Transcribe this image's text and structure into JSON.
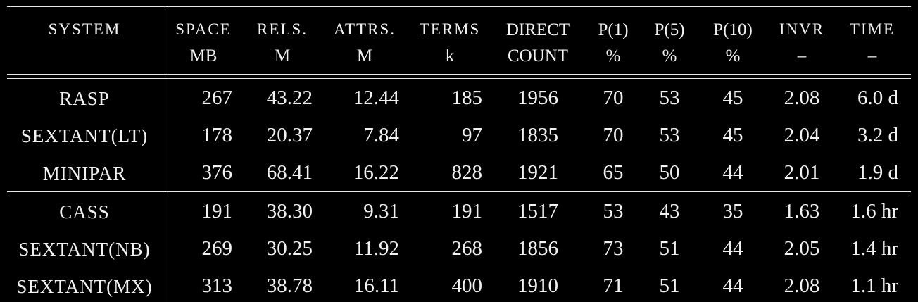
{
  "headers": [
    {
      "top": "SYSTEM",
      "bottom": ""
    },
    {
      "top": "SPACE",
      "bottom": "MB"
    },
    {
      "top": "RELS.",
      "bottom": "M"
    },
    {
      "top": "ATTRS.",
      "bottom": "M"
    },
    {
      "top": "TERMS",
      "bottom": "k"
    },
    {
      "top": "DIRECT",
      "bottom": "COUNT"
    },
    {
      "top": "P(1)",
      "bottom": "%"
    },
    {
      "top": "P(5)",
      "bottom": "%"
    },
    {
      "top": "P(10)",
      "bottom": "%"
    },
    {
      "top": "INVR",
      "bottom": "–"
    },
    {
      "top": "TIME",
      "bottom": "–"
    }
  ],
  "rows": [
    [
      "RASP",
      "267",
      "43.22",
      "12.44",
      "185",
      "1956",
      "70",
      "53",
      "45",
      "2.08",
      "6.0 d"
    ],
    [
      "SEXTANT(LT)",
      "178",
      "20.37",
      "7.84",
      "97",
      "1835",
      "70",
      "53",
      "45",
      "2.04",
      "3.2 d"
    ],
    [
      "MINIPAR",
      "376",
      "68.41",
      "16.22",
      "828",
      "1921",
      "65",
      "50",
      "44",
      "2.01",
      "1.9 d"
    ],
    [
      "CASS",
      "191",
      "38.30",
      "9.31",
      "191",
      "1517",
      "53",
      "43",
      "35",
      "1.63",
      "1.6 hr"
    ],
    [
      "SEXTANT(NB)",
      "269",
      "30.25",
      "11.92",
      "268",
      "1856",
      "73",
      "51",
      "44",
      "2.05",
      "1.4 hr"
    ],
    [
      "SEXTANT(MX)",
      "313",
      "38.78",
      "16.11",
      "400",
      "1910",
      "71",
      "51",
      "44",
      "2.08",
      "1.1 hr"
    ]
  ]
}
